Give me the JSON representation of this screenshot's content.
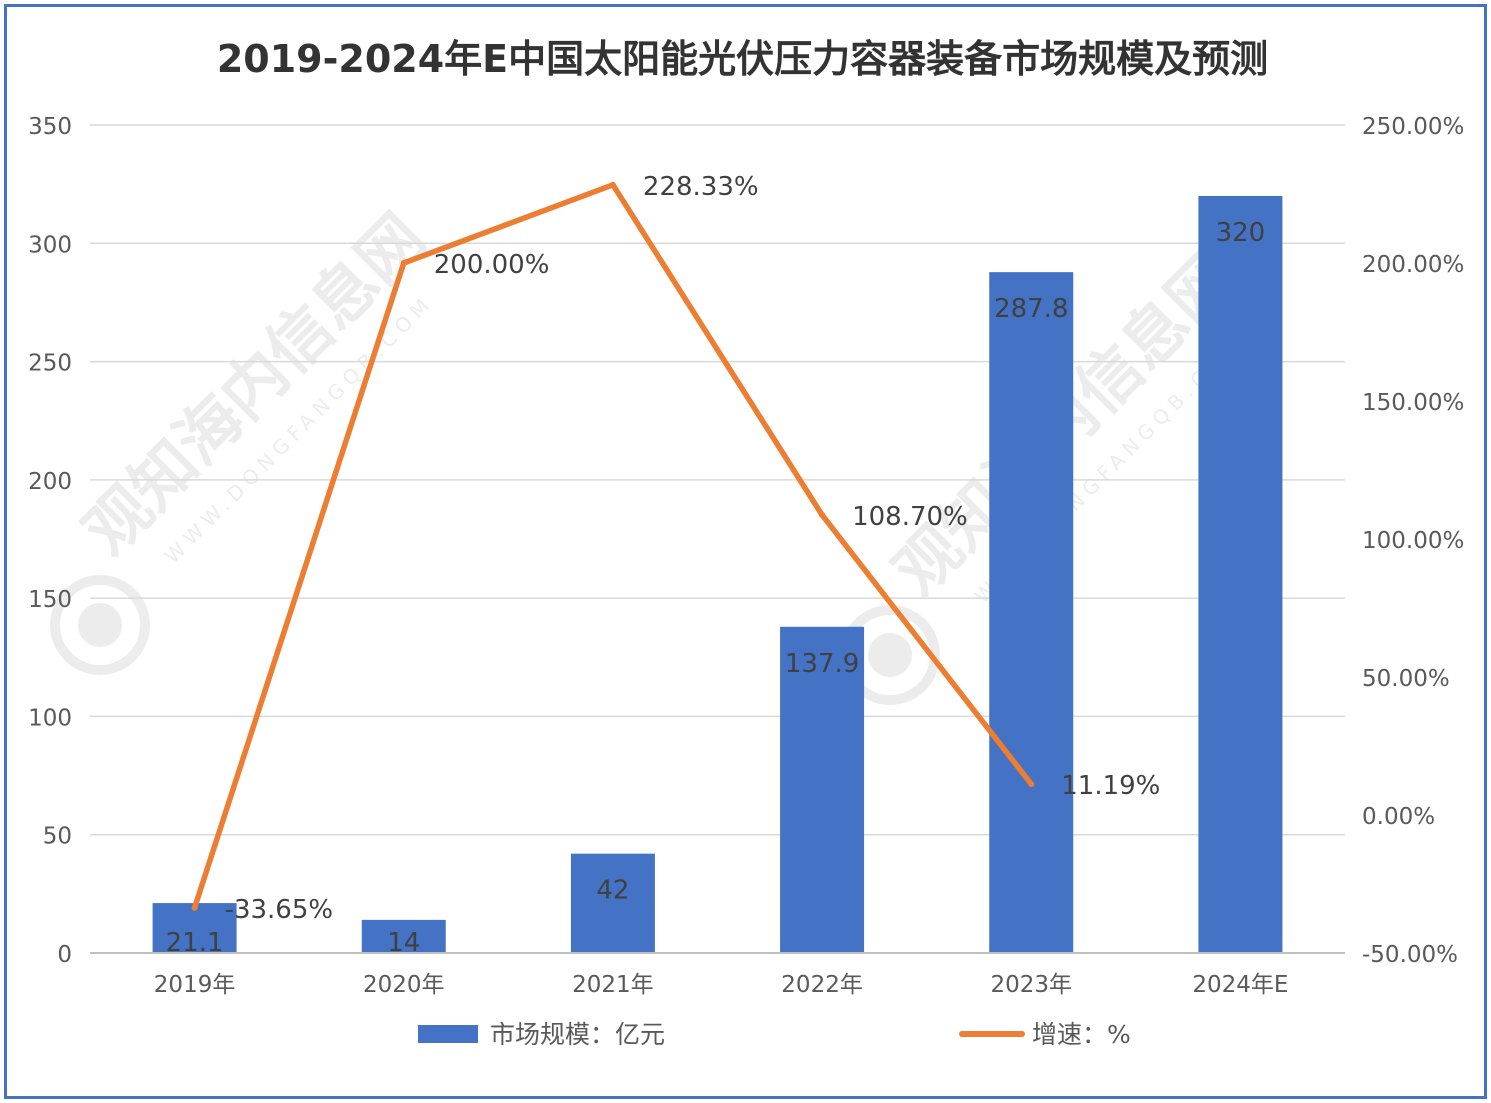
{
  "chart_data": {
    "type": "bar",
    "title": "2019-2024年E中国太阳能光伏压力容器装备市场规模及预测",
    "categories": [
      "2019年",
      "2020年",
      "2021年",
      "2022年",
      "2023年",
      "2024年E"
    ],
    "series": [
      {
        "name": "市场规模：亿元",
        "type": "bar",
        "axis": "left",
        "values": [
          21.1,
          14,
          42,
          137.9,
          287.8,
          320
        ],
        "labels": [
          "21.1",
          "14",
          "42",
          "137.9",
          "287.8",
          "320"
        ],
        "color": "#4472c4"
      },
      {
        "name": "增速：%",
        "type": "line",
        "axis": "right",
        "values": [
          -33.65,
          200.0,
          228.33,
          108.7,
          11.19,
          null
        ],
        "labels": [
          "-33.65%",
          "200.00%",
          "228.33%",
          "108.70%",
          "11.19%",
          ""
        ],
        "color": "#ed7d31"
      }
    ],
    "y_left": {
      "range": [
        0,
        350
      ],
      "ticks": [
        0,
        50,
        100,
        150,
        200,
        250,
        300,
        350
      ],
      "tick_labels": [
        "0",
        "50",
        "100",
        "150",
        "200",
        "250",
        "300",
        "350"
      ]
    },
    "y_right": {
      "range": [
        -50,
        250
      ],
      "ticks": [
        -50,
        0,
        50,
        100,
        150,
        200,
        250
      ],
      "tick_labels": [
        "-50.00%",
        "0.00%",
        "50.00%",
        "100.00%",
        "150.00%",
        "200.00%",
        "250.00%"
      ]
    },
    "grid": true,
    "legend": "bottom"
  },
  "watermark": {
    "text": "观知海内信息网",
    "sub": "WWW.DONGFANGQB.COM"
  },
  "colors": {
    "border": "#4472c4",
    "grid": "#d9d9d9",
    "axis_text": "#595959",
    "label_text": "#404040"
  }
}
